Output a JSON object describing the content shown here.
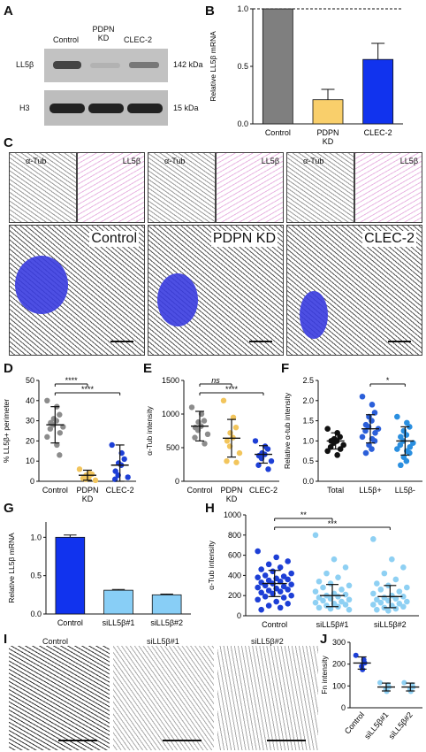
{
  "panels": {
    "A": {
      "label": "A",
      "lanes": [
        "Control",
        "PDPN KD",
        "CLEC-2"
      ],
      "rows": [
        {
          "protein": "LL5β",
          "mw": "142 kDa"
        },
        {
          "protein": "H3",
          "mw": "15 kDa"
        }
      ]
    },
    "B": {
      "label": "B"
    },
    "C": {
      "label": "C",
      "insets": [
        "α-Tub",
        "LL5β"
      ],
      "conditions": [
        "Control",
        "PDPN KD",
        "CLEC-2"
      ]
    },
    "D": {
      "label": "D"
    },
    "E": {
      "label": "E"
    },
    "F": {
      "label": "F"
    },
    "G": {
      "label": "G"
    },
    "H": {
      "label": "H"
    },
    "I": {
      "label": "I",
      "conditions": [
        "Control",
        "siLL5β#1",
        "siLL5β#2"
      ]
    },
    "J": {
      "label": "J"
    }
  },
  "chart_data": [
    {
      "id": "B",
      "type": "bar",
      "categories": [
        "Control",
        "PDPN KD",
        "CLEC-2"
      ],
      "values": [
        1.0,
        0.21,
        0.56
      ],
      "errors": [
        0,
        0.09,
        0.14
      ],
      "colors": [
        "#7f7f7f",
        "#f9cf6b",
        "#1133ee"
      ],
      "ylabel": "Relative LL5β mRNA",
      "ylim": [
        0,
        1.0
      ],
      "yticks": [
        "0.0",
        "0.5",
        "1.0"
      ],
      "reference_line": 1.0
    },
    {
      "id": "D",
      "type": "scatter",
      "categories": [
        "Control",
        "PDPN KD",
        "CLEC-2"
      ],
      "ylabel": "% LL5β+ perimeter",
      "ylim": [
        0,
        50
      ],
      "yticks": [
        "0",
        "10",
        "20",
        "30",
        "40",
        "50"
      ],
      "colors": [
        "#8c8c8c",
        "#f2c55c",
        "#1d3fd6"
      ],
      "points": [
        [
          40,
          37,
          33,
          31,
          30,
          29,
          28,
          27,
          26,
          24,
          22,
          18,
          13
        ],
        [
          6,
          4,
          3.5,
          3,
          2,
          1.5,
          1,
          0.5
        ],
        [
          18,
          14,
          11,
          9,
          8,
          5,
          3,
          2,
          1
        ]
      ],
      "means": [
        28,
        3,
        8
      ],
      "sd": [
        9,
        2.5,
        10
      ],
      "significance": [
        {
          "from": 0,
          "to": 1,
          "text": "****"
        },
        {
          "from": 0,
          "to": 2,
          "text": "****"
        }
      ]
    },
    {
      "id": "E",
      "type": "scatter",
      "categories": [
        "Control",
        "PDPN KD",
        "CLEC-2"
      ],
      "ylabel": "α-Tub intensity",
      "ylim": [
        0,
        1500
      ],
      "yticks": [
        "0",
        "500",
        "1000",
        "1500"
      ],
      "colors": [
        "#8c8c8c",
        "#f2c55c",
        "#1d3fd6"
      ],
      "points": [
        [
          1100,
          1000,
          900,
          880,
          820,
          800,
          760,
          700,
          650,
          560
        ],
        [
          1200,
          950,
          800,
          720,
          650,
          600,
          520,
          420,
          300,
          280
        ],
        [
          600,
          520,
          480,
          420,
          400,
          380,
          340,
          300,
          240,
          180
        ]
      ],
      "means": [
        820,
        640,
        400
      ],
      "sd": [
        220,
        280,
        130
      ],
      "significance": [
        {
          "from": 0,
          "to": 1,
          "text": "ns"
        },
        {
          "from": 0,
          "to": 2,
          "text": "****"
        }
      ]
    },
    {
      "id": "F",
      "type": "scatter",
      "categories": [
        "Total",
        "LL5β+",
        "LL5β-"
      ],
      "ylabel": "Relative α-tub intensity",
      "ylim": [
        0,
        2.5
      ],
      "yticks": [
        "0.0",
        "0.5",
        "1.0",
        "1.5",
        "2.0",
        "2.5"
      ],
      "colors": [
        "#111111",
        "#2b5fd9",
        "#2a8fe0"
      ],
      "points": [
        [
          1.3,
          1.2,
          1.1,
          1.05,
          1.0,
          1.0,
          0.95,
          0.9,
          0.85,
          0.8,
          0.75,
          0.65
        ],
        [
          2.1,
          1.9,
          1.7,
          1.6,
          1.5,
          1.4,
          1.35,
          1.3,
          1.25,
          1.2,
          1.1,
          1.05,
          1.0,
          0.9,
          0.8,
          0.7
        ],
        [
          1.6,
          1.45,
          1.35,
          1.25,
          1.15,
          1.1,
          1.0,
          0.95,
          0.9,
          0.85,
          0.8,
          0.75,
          0.7,
          0.6,
          0.5,
          0.4
        ]
      ],
      "means": [
        1.0,
        1.3,
        1.0
      ],
      "sd": [
        0.2,
        0.35,
        0.35
      ],
      "significance": [
        {
          "from": 1,
          "to": 2,
          "text": "*"
        }
      ]
    },
    {
      "id": "G",
      "type": "bar",
      "categories": [
        "Control",
        "siLL5β#1",
        "siLL5β#2"
      ],
      "values": [
        1.0,
        0.31,
        0.25
      ],
      "errors": [
        0.03,
        0.01,
        0.01
      ],
      "colors": [
        "#1133ee",
        "#88cef6",
        "#88cef6"
      ],
      "ylabel": "Relative LL5β mRNA",
      "ylim": [
        0,
        1.2
      ],
      "yticks": [
        "0.0",
        "0.5",
        "1.0"
      ]
    },
    {
      "id": "H",
      "type": "scatter",
      "categories": [
        "Control",
        "siLL5β#1",
        "siLL5β#2"
      ],
      "ylabel": "α-Tub intensity",
      "ylim": [
        0,
        1000
      ],
      "yticks": [
        "0",
        "200",
        "400",
        "600",
        "800",
        "1000"
      ],
      "colors": [
        "#1d3fd6",
        "#8ed0f3",
        "#8ed0f3"
      ],
      "points": [
        [
          640,
          580,
          540,
          510,
          480,
          460,
          440,
          420,
          400,
          390,
          380,
          370,
          360,
          350,
          340,
          330,
          320,
          310,
          300,
          290,
          280,
          270,
          260,
          250,
          240,
          230,
          220,
          200,
          190,
          180,
          160,
          140,
          120,
          100,
          80,
          60
        ],
        [
          800,
          560,
          480,
          420,
          380,
          340,
          320,
          300,
          280,
          260,
          240,
          220,
          210,
          200,
          190,
          180,
          170,
          160,
          150,
          140,
          130,
          120,
          110,
          100,
          90,
          80,
          70,
          60
        ],
        [
          760,
          560,
          480,
          420,
          360,
          320,
          300,
          280,
          260,
          240,
          220,
          200,
          190,
          180,
          170,
          160,
          150,
          140,
          130,
          120,
          110,
          100,
          90,
          80,
          70,
          60,
          50
        ]
      ],
      "means": [
        320,
        200,
        190
      ],
      "sd": [
        130,
        110,
        110
      ],
      "significance": [
        {
          "from": 0,
          "to": 1,
          "text": "**"
        },
        {
          "from": 0,
          "to": 2,
          "text": "***"
        }
      ]
    },
    {
      "id": "J",
      "type": "scatter",
      "categories": [
        "Control",
        "siLL5β#1",
        "siLL5β#2"
      ],
      "ylabel": "Fn intensity",
      "ylim": [
        0,
        300
      ],
      "yticks": [
        "0",
        "100",
        "200",
        "300"
      ],
      "colors": [
        "#1d3fd6",
        "#8ed0f3",
        "#8ed0f3"
      ],
      "points": [
        [
          240,
          220,
          205,
          190,
          175
        ],
        [
          115,
          105,
          95,
          85,
          75
        ],
        [
          115,
          105,
          95,
          85,
          75
        ]
      ],
      "means": [
        205,
        95,
        95
      ],
      "sd": [
        28,
        18,
        18
      ],
      "significance": []
    }
  ]
}
